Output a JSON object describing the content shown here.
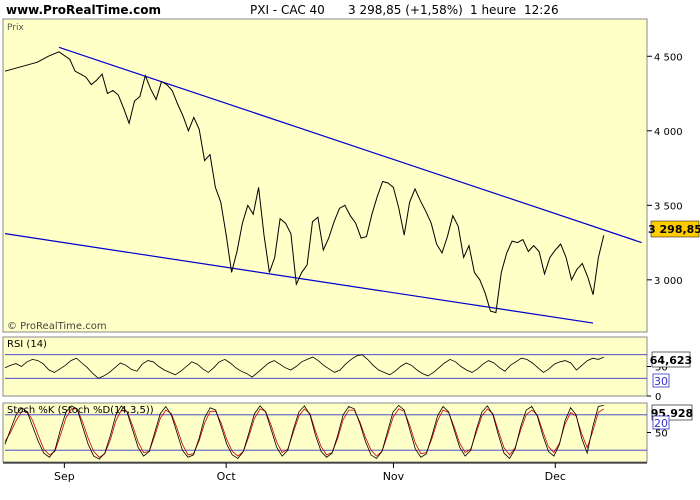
{
  "header": {
    "site": "www.ProRealTime.com",
    "instrument": "PXI - CAC 40",
    "quote": "3 298,85 (+1,58%)",
    "period": "1 heure",
    "time": "12:26"
  },
  "colors": {
    "panel_bg": "#ffffc8",
    "price_line": "#000000",
    "trendline": "#0000cc",
    "last_badge": "#ffcc00",
    "stoch_d": "#cc0000",
    "level_line": "#3333cc"
  },
  "chart_data": [
    {
      "type": "line",
      "panel": "price",
      "title": "Prix",
      "watermark": "© ProRealTime.com",
      "x_range": [
        "2008-08-21",
        "2008-12-18"
      ],
      "ylim": [
        2650,
        4750
      ],
      "yticks": [
        3000,
        3500,
        4000,
        4500
      ],
      "ytick_labels": [
        "3 000",
        "3 500",
        "4 000",
        "4 500"
      ],
      "xtick_labels": [
        {
          "date": "2008-09-01",
          "label": "Sep"
        },
        {
          "date": "2008-10-01",
          "label": "Oct"
        },
        {
          "date": "2008-11-01",
          "label": "Nov"
        },
        {
          "date": "2008-12-01",
          "label": "Dec"
        }
      ],
      "last_value_label": "3 298,85",
      "series": [
        {
          "x": [
            "2008-08-21",
            "2008-08-23",
            "2008-08-25",
            "2008-08-27",
            "2008-08-29",
            "2008-08-31",
            "2008-09-02",
            "2008-09-03",
            "2008-09-04",
            "2008-09-05",
            "2008-09-06",
            "2008-09-07",
            "2008-09-08",
            "2008-09-09",
            "2008-09-10",
            "2008-09-11",
            "2008-09-12",
            "2008-09-13",
            "2008-09-14",
            "2008-09-15",
            "2008-09-16",
            "2008-09-17",
            "2008-09-18",
            "2008-09-19",
            "2008-09-20",
            "2008-09-21",
            "2008-09-22",
            "2008-09-23",
            "2008-09-24",
            "2008-09-25",
            "2008-09-26",
            "2008-09-27",
            "2008-09-28",
            "2008-09-29",
            "2008-09-30",
            "2008-10-01",
            "2008-10-02",
            "2008-10-03",
            "2008-10-04",
            "2008-10-05",
            "2008-10-06",
            "2008-10-07",
            "2008-10-08",
            "2008-10-09",
            "2008-10-10",
            "2008-10-11",
            "2008-10-12",
            "2008-10-13",
            "2008-10-14",
            "2008-10-15",
            "2008-10-16",
            "2008-10-17",
            "2008-10-18",
            "2008-10-19",
            "2008-10-20",
            "2008-10-21",
            "2008-10-22",
            "2008-10-23",
            "2008-10-24",
            "2008-10-25",
            "2008-10-26",
            "2008-10-27",
            "2008-10-28",
            "2008-10-29",
            "2008-10-30",
            "2008-10-31",
            "2008-11-01",
            "2008-11-02",
            "2008-11-03",
            "2008-11-04",
            "2008-11-05",
            "2008-11-06",
            "2008-11-07",
            "2008-11-08",
            "2008-11-09",
            "2008-11-10",
            "2008-11-11",
            "2008-11-12",
            "2008-11-13",
            "2008-11-14",
            "2008-11-15",
            "2008-11-16",
            "2008-11-17",
            "2008-11-18",
            "2008-11-19",
            "2008-11-20",
            "2008-11-21",
            "2008-11-22",
            "2008-11-23",
            "2008-11-24",
            "2008-11-25",
            "2008-11-26",
            "2008-11-27",
            "2008-11-28",
            "2008-11-29",
            "2008-11-30",
            "2008-12-01",
            "2008-12-02",
            "2008-12-03",
            "2008-12-04",
            "2008-12-05",
            "2008-12-06",
            "2008-12-07",
            "2008-12-08",
            "2008-12-09",
            "2008-12-10"
          ],
          "y": [
            4400,
            4420,
            4440,
            4460,
            4500,
            4530,
            4480,
            4400,
            4380,
            4360,
            4310,
            4340,
            4380,
            4250,
            4270,
            4240,
            4150,
            4050,
            4200,
            4230,
            4370,
            4280,
            4210,
            4330,
            4310,
            4270,
            4180,
            4100,
            4000,
            4090,
            4010,
            3800,
            3840,
            3620,
            3520,
            3300,
            3050,
            3190,
            3380,
            3500,
            3440,
            3620,
            3300,
            3050,
            3150,
            3410,
            3380,
            3310,
            2970,
            3050,
            3100,
            3390,
            3420,
            3200,
            3280,
            3390,
            3480,
            3500,
            3430,
            3380,
            3280,
            3290,
            3440,
            3560,
            3660,
            3650,
            3620,
            3480,
            3300,
            3520,
            3610,
            3530,
            3460,
            3380,
            3240,
            3180,
            3290,
            3430,
            3360,
            3150,
            3230,
            3050,
            3000,
            2910,
            2790,
            2780,
            3050,
            3180,
            3260,
            3250,
            3270,
            3190,
            3230,
            3190,
            3040,
            3150,
            3200,
            3240,
            3150,
            3000,
            3070,
            3110,
            3020,
            2900,
            3150,
            3299
          ]
        }
      ],
      "trendlines": [
        {
          "from": {
            "x": "2008-08-31",
            "y": 4560
          },
          "to": {
            "x": "2008-12-17",
            "y": 3250
          }
        },
        {
          "from": {
            "x": "2008-08-21",
            "y": 3310
          },
          "to": {
            "x": "2008-12-08",
            "y": 2710
          }
        }
      ]
    },
    {
      "type": "line",
      "panel": "rsi",
      "title": "RSI (14)",
      "ylim": [
        0,
        100
      ],
      "levels": [
        30,
        70
      ],
      "yticks": [
        0,
        50
      ],
      "ytick_labels": [
        "0",
        "50"
      ],
      "level_label": "30",
      "last_value_label": "64,623",
      "series": [
        {
          "x_range": [
            "2008-08-21",
            "2008-12-10"
          ],
          "values": [
            48,
            52,
            55,
            50,
            58,
            62,
            60,
            54,
            44,
            40,
            46,
            52,
            60,
            64,
            56,
            48,
            38,
            30,
            34,
            40,
            48,
            56,
            52,
            45,
            42,
            54,
            60,
            58,
            50,
            44,
            40,
            36,
            42,
            50,
            58,
            54,
            46,
            40,
            48,
            58,
            62,
            56,
            48,
            42,
            38,
            32,
            40,
            48,
            56,
            60,
            54,
            48,
            44,
            50,
            58,
            62,
            66,
            60,
            52,
            46,
            40,
            44,
            54,
            62,
            68,
            70,
            62,
            52,
            44,
            40,
            36,
            42,
            50,
            56,
            52,
            44,
            38,
            34,
            40,
            48,
            56,
            62,
            58,
            50,
            44,
            40,
            46,
            54,
            60,
            56,
            48,
            42,
            52,
            58,
            64,
            62,
            56,
            48,
            40,
            46,
            54,
            58,
            60,
            56,
            44,
            52,
            60,
            64,
            62,
            66
          ]
        }
      ]
    },
    {
      "type": "line",
      "panel": "stochastic",
      "title": "Stoch %K (Stoch %D(14,3,5))",
      "ylim": [
        0,
        100
      ],
      "levels": [
        20,
        80
      ],
      "yticks": [
        50
      ],
      "ytick_labels": [
        "50"
      ],
      "level_label": "20",
      "last_value_label": "95,928",
      "series": [
        {
          "name": "Stoch %K",
          "x_range": [
            "2008-08-21",
            "2008-12-10"
          ],
          "values": [
            30,
            55,
            80,
            92,
            85,
            60,
            35,
            15,
            8,
            20,
            55,
            85,
            95,
            90,
            60,
            30,
            10,
            5,
            15,
            45,
            80,
            95,
            85,
            55,
            25,
            10,
            18,
            50,
            82,
            94,
            80,
            50,
            20,
            8,
            12,
            40,
            75,
            92,
            88,
            60,
            30,
            12,
            6,
            18,
            50,
            82,
            95,
            85,
            55,
            25,
            10,
            20,
            55,
            85,
            95,
            80,
            45,
            18,
            8,
            15,
            45,
            80,
            94,
            90,
            65,
            35,
            12,
            6,
            18,
            52,
            85,
            96,
            88,
            55,
            22,
            8,
            14,
            45,
            78,
            94,
            85,
            55,
            25,
            10,
            20,
            55,
            85,
            95,
            80,
            45,
            15,
            6,
            22,
            60,
            88,
            94,
            78,
            45,
            18,
            10,
            30,
            70,
            92,
            80,
            40,
            15,
            60,
            94,
            96
          ]
        },
        {
          "name": "Stoch %D",
          "x_range": [
            "2008-08-21",
            "2008-12-10"
          ],
          "values": [
            35,
            50,
            70,
            85,
            86,
            70,
            45,
            22,
            12,
            18,
            45,
            75,
            90,
            90,
            68,
            40,
            18,
            8,
            14,
            38,
            70,
            88,
            86,
            62,
            34,
            16,
            18,
            44,
            74,
            88,
            82,
            58,
            30,
            12,
            14,
            36,
            66,
            86,
            86,
            66,
            38,
            18,
            10,
            18,
            44,
            74,
            90,
            86,
            62,
            34,
            16,
            22,
            50,
            78,
            90,
            82,
            52,
            26,
            12,
            16,
            40,
            72,
            88,
            88,
            68,
            42,
            20,
            10,
            18,
            46,
            76,
            90,
            86,
            62,
            32,
            14,
            16,
            40,
            70,
            88,
            84,
            60,
            32,
            16,
            22,
            50,
            78,
            90,
            82,
            52,
            24,
            12,
            24,
            54,
            80,
            88,
            80,
            52,
            26,
            16,
            32,
            64,
            84,
            78,
            48,
            24,
            52,
            84,
            90
          ]
        }
      ]
    },
    {
      "type": "line",
      "panel": "x-axis",
      "xtick_labels": [
        "Sep",
        "Oct",
        "Nov",
        "Dec"
      ]
    }
  ]
}
